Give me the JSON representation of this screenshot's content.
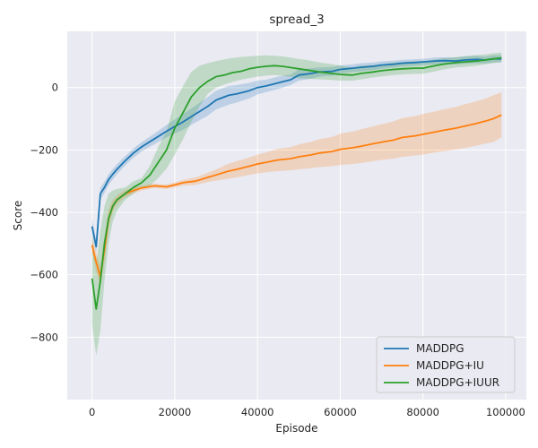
{
  "chart_data": {
    "type": "line",
    "title": "spread_3",
    "xlabel": "Episode",
    "ylabel": "Score",
    "xlim": [
      -6000,
      105000
    ],
    "ylim": [
      -1000,
      180
    ],
    "xticks": [
      0,
      20000,
      40000,
      60000,
      80000,
      100000
    ],
    "yticks": [
      -800,
      -600,
      -400,
      -200,
      0
    ],
    "tick_label_texts": {
      "x": [
        "0",
        "20000",
        "40000",
        "60000",
        "80000",
        "100000"
      ],
      "y": [
        "−800",
        "−600",
        "−400",
        "−200",
        "0"
      ]
    },
    "grid": true,
    "legend_position": "bottom-right",
    "colors": {
      "background": "#eaeaf2",
      "grid": "#ffffff",
      "MADDPG": "#1f77b4",
      "MADDPG+IU": "#ff7f0e",
      "MADDPG+IUUR": "#2ca02c"
    },
    "series": [
      {
        "name": "MADDPG",
        "color": "#1f77b4",
        "x": [
          0,
          1000,
          2000,
          3000,
          4000,
          5000,
          6000,
          8000,
          10000,
          12000,
          15000,
          18000,
          20000,
          22000,
          25000,
          28000,
          30000,
          33000,
          35000,
          38000,
          40000,
          42000,
          45000,
          48000,
          50000,
          53000,
          55000,
          58000,
          60000,
          63000,
          65000,
          68000,
          70000,
          73000,
          75000,
          78000,
          80000,
          83000,
          85000,
          88000,
          90000,
          93000,
          95000,
          97000,
          99000
        ],
        "y": [
          -445,
          -510,
          -340,
          -320,
          -295,
          -278,
          -262,
          -235,
          -210,
          -190,
          -165,
          -140,
          -125,
          -110,
          -85,
          -60,
          -40,
          -25,
          -20,
          -10,
          0,
          5,
          15,
          25,
          40,
          45,
          50,
          52,
          58,
          62,
          65,
          68,
          72,
          75,
          78,
          80,
          82,
          85,
          86,
          85,
          88,
          90,
          88,
          92,
          92
        ],
        "lower": [
          -470,
          -530,
          -360,
          -338,
          -312,
          -295,
          -278,
          -250,
          -225,
          -205,
          -182,
          -160,
          -148,
          -135,
          -112,
          -90,
          -70,
          -55,
          -48,
          -35,
          -22,
          -15,
          -5,
          8,
          22,
          28,
          35,
          38,
          45,
          50,
          52,
          56,
          60,
          64,
          67,
          70,
          72,
          74,
          75,
          74,
          76,
          78,
          77,
          80,
          80
        ],
        "upper": [
          -420,
          -490,
          -320,
          -302,
          -278,
          -261,
          -246,
          -220,
          -195,
          -175,
          -148,
          -120,
          -102,
          -85,
          -58,
          -30,
          -10,
          5,
          8,
          15,
          22,
          25,
          35,
          42,
          58,
          62,
          65,
          66,
          71,
          74,
          78,
          80,
          84,
          86,
          89,
          90,
          92,
          96,
          97,
          96,
          100,
          102,
          99,
          104,
          104
        ]
      },
      {
        "name": "MADDPG+IU",
        "color": "#ff7f0e",
        "x": [
          0,
          1000,
          2000,
          3000,
          4000,
          5000,
          6000,
          8000,
          10000,
          12000,
          15000,
          18000,
          20000,
          22000,
          25000,
          28000,
          30000,
          33000,
          35000,
          38000,
          40000,
          42000,
          45000,
          48000,
          50000,
          53000,
          55000,
          58000,
          60000,
          63000,
          65000,
          68000,
          70000,
          73000,
          75000,
          78000,
          80000,
          83000,
          85000,
          88000,
          90000,
          93000,
          95000,
          97000,
          99000
        ],
        "y": [
          -505,
          -560,
          -605,
          -520,
          -420,
          -380,
          -360,
          -340,
          -330,
          -322,
          -315,
          -318,
          -312,
          -305,
          -300,
          -288,
          -280,
          -268,
          -262,
          -252,
          -245,
          -240,
          -232,
          -228,
          -222,
          -216,
          -210,
          -205,
          -198,
          -193,
          -188,
          -180,
          -175,
          -168,
          -160,
          -155,
          -150,
          -142,
          -137,
          -130,
          -124,
          -115,
          -108,
          -100,
          -88
        ],
        "lower": [
          -530,
          -590,
          -640,
          -560,
          -450,
          -400,
          -375,
          -352,
          -340,
          -330,
          -322,
          -325,
          -320,
          -314,
          -312,
          -303,
          -298,
          -292,
          -288,
          -280,
          -275,
          -272,
          -268,
          -265,
          -262,
          -258,
          -255,
          -252,
          -248,
          -245,
          -242,
          -236,
          -232,
          -228,
          -222,
          -218,
          -215,
          -208,
          -204,
          -198,
          -194,
          -186,
          -180,
          -175,
          -160
        ],
        "upper": [
          -480,
          -530,
          -570,
          -480,
          -390,
          -360,
          -345,
          -328,
          -320,
          -314,
          -308,
          -311,
          -304,
          -296,
          -288,
          -273,
          -262,
          -244,
          -236,
          -224,
          -215,
          -208,
          -196,
          -191,
          -182,
          -174,
          -165,
          -158,
          -148,
          -141,
          -134,
          -124,
          -118,
          -108,
          -98,
          -92,
          -85,
          -76,
          -70,
          -62,
          -54,
          -44,
          -36,
          -25,
          -15
        ]
      },
      {
        "name": "MADDPG+IUUR",
        "color": "#2ca02c",
        "x": [
          0,
          1000,
          2000,
          3000,
          4000,
          5000,
          6000,
          8000,
          10000,
          12000,
          14000,
          16000,
          18000,
          20000,
          22000,
          24000,
          26000,
          28000,
          30000,
          32000,
          34000,
          36000,
          38000,
          40000,
          42000,
          44000,
          46000,
          48000,
          50000,
          52000,
          55000,
          58000,
          60000,
          63000,
          65000,
          68000,
          70000,
          73000,
          75000,
          78000,
          80000,
          83000,
          85000,
          88000,
          90000,
          93000,
          95000,
          97000,
          99000
        ],
        "y": [
          -612,
          -710,
          -620,
          -500,
          -420,
          -380,
          -360,
          -340,
          -320,
          -305,
          -280,
          -240,
          -200,
          -130,
          -80,
          -30,
          0,
          20,
          35,
          40,
          48,
          52,
          60,
          65,
          68,
          70,
          68,
          64,
          60,
          56,
          50,
          45,
          42,
          40,
          45,
          50,
          54,
          58,
          60,
          62,
          62,
          70,
          75,
          80,
          82,
          85,
          88,
          92,
          95
        ],
        "lower": [
          -760,
          -860,
          -780,
          -620,
          -500,
          -430,
          -395,
          -360,
          -340,
          -320,
          -315,
          -290,
          -260,
          -215,
          -165,
          -110,
          -60,
          -20,
          0,
          10,
          18,
          25,
          30,
          35,
          38,
          40,
          38,
          34,
          30,
          28,
          26,
          24,
          22,
          22,
          26,
          32,
          36,
          40,
          42,
          44,
          44,
          52,
          58,
          64,
          66,
          70,
          74,
          78,
          82
        ],
        "upper": [
          -470,
          -560,
          -460,
          -380,
          -340,
          -330,
          -325,
          -320,
          -300,
          -290,
          -250,
          -190,
          -140,
          -45,
          5,
          50,
          70,
          78,
          85,
          90,
          95,
          98,
          100,
          102,
          103,
          102,
          100,
          96,
          92,
          88,
          80,
          75,
          70,
          64,
          70,
          72,
          75,
          80,
          82,
          84,
          84,
          90,
          94,
          98,
          100,
          104,
          106,
          110,
          112
        ]
      }
    ]
  }
}
